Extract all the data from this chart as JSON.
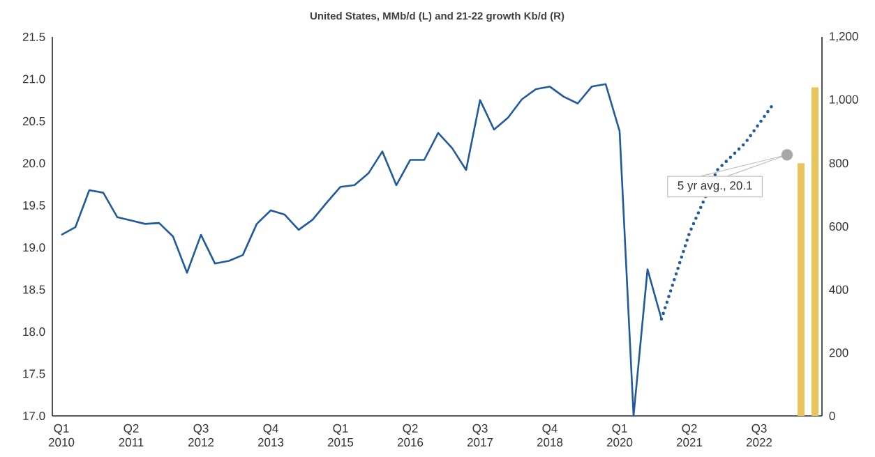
{
  "chart_data": {
    "type": "line",
    "title": "United States, MMb/d (L) and 21-22 growth Kb/d (R)",
    "categories": [
      "Q1 2010",
      null,
      null,
      null,
      null,
      "Q2 2011",
      null,
      null,
      null,
      null,
      "Q3 2012",
      null,
      null,
      null,
      null,
      "Q4 2013",
      null,
      null,
      null,
      null,
      "Q1 2015",
      null,
      null,
      null,
      null,
      "Q2 2016",
      null,
      null,
      null,
      null,
      "Q3 2017",
      null,
      null,
      null,
      null,
      "Q4 2018",
      null,
      null,
      null,
      null,
      "Q1 2020",
      null,
      null,
      null,
      null,
      "Q2 2021",
      null,
      null,
      null,
      null,
      "Q3 2022",
      null,
      null,
      null,
      null
    ],
    "series": [
      {
        "color": "#215a9c",
        "line_style": "solid",
        "values": [
          19.15,
          19.24,
          19.68,
          19.65,
          19.36,
          19.32,
          19.28,
          19.29,
          19.13,
          18.7,
          19.15,
          18.81,
          18.84,
          18.91,
          19.28,
          19.44,
          19.39,
          19.21,
          19.33,
          19.53,
          19.72,
          19.74,
          19.88,
          20.14,
          19.74,
          20.04,
          20.04,
          20.36,
          20.18,
          19.92,
          20.75,
          20.4,
          20.54,
          20.76,
          20.88,
          20.91,
          20.79,
          20.71,
          20.91,
          20.94,
          20.38,
          17.0,
          18.74,
          18.15,
          null,
          null,
          null,
          null,
          null,
          null,
          null,
          null,
          null,
          null,
          null
        ]
      },
      {
        "color": "#215a9c",
        "line_style": "dotted",
        "values": [
          null,
          null,
          null,
          null,
          null,
          null,
          null,
          null,
          null,
          null,
          null,
          null,
          null,
          null,
          null,
          null,
          null,
          null,
          null,
          null,
          null,
          null,
          null,
          null,
          null,
          null,
          null,
          null,
          null,
          null,
          null,
          null,
          null,
          null,
          null,
          null,
          null,
          null,
          null,
          null,
          null,
          null,
          null,
          18.15,
          18.66,
          19.17,
          null,
          19.92,
          20.08,
          20.24,
          20.47,
          20.7,
          null,
          null,
          null
        ]
      },
      {
        "type": "bar",
        "axis": "y2",
        "color": "#e8c45a",
        "values": [
          null,
          null,
          null,
          null,
          null,
          null,
          null,
          null,
          null,
          null,
          null,
          null,
          null,
          null,
          null,
          null,
          null,
          null,
          null,
          null,
          null,
          null,
          null,
          null,
          null,
          null,
          null,
          null,
          null,
          null,
          null,
          null,
          null,
          null,
          null,
          null,
          null,
          null,
          null,
          null,
          null,
          null,
          null,
          null,
          null,
          null,
          null,
          null,
          null,
          null,
          null,
          null,
          null,
          800,
          1040
        ]
      },
      {
        "type": "scatter",
        "color": "#a6a6a6",
        "values": [
          null,
          null,
          null,
          null,
          null,
          null,
          null,
          null,
          null,
          null,
          null,
          null,
          null,
          null,
          null,
          null,
          null,
          null,
          null,
          null,
          null,
          null,
          null,
          null,
          null,
          null,
          null,
          null,
          null,
          null,
          null,
          null,
          null,
          null,
          null,
          null,
          null,
          null,
          null,
          null,
          null,
          null,
          null,
          null,
          null,
          null,
          null,
          null,
          null,
          null,
          null,
          null,
          20.1,
          null,
          null
        ]
      }
    ],
    "ylim": [
      17,
      21.5
    ],
    "yticks": [
      {
        "value": 17,
        "label": "17.0"
      },
      17.5,
      {
        "value": 18,
        "label": "18.0"
      },
      18.5,
      {
        "value": 19,
        "label": "19.0"
      },
      19.5,
      {
        "value": 20,
        "label": "20.0"
      },
      20.5,
      {
        "value": 21,
        "label": "21.0"
      },
      21.5
    ],
    "y2lim": [
      0,
      1200
    ],
    "y2ticks": [
      0,
      200,
      400,
      600,
      800,
      {
        "value": 1000,
        "label": "1,000"
      },
      {
        "value": 1200,
        "label": "1,200"
      }
    ],
    "annotations": [
      "5 yr avg., 20.1"
    ]
  }
}
